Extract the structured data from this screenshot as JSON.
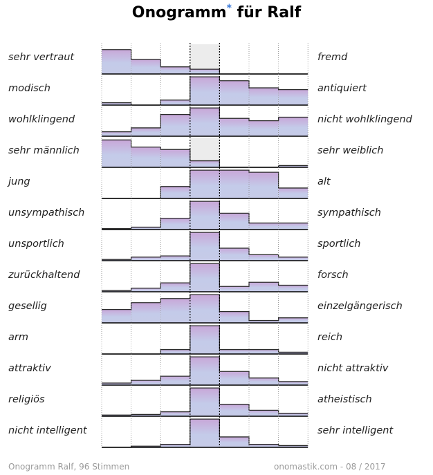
{
  "title": "Onogramm",
  "title_star": "*",
  "title_suffix": " für Ralf",
  "footer_left": "Onogramm Ralf, 96 Stimmen",
  "footer_right": "onomastik.com - 08 / 2017",
  "colors": {
    "bar_top": "#c8a7d8",
    "bar_bottom": "#c4cbe9",
    "bar_fill": "#c6cbe8",
    "grid": "#888888",
    "baseline": "#000000",
    "highlight": "#ececec"
  },
  "chart_data": {
    "type": "bar",
    "title": "Onogramm* für Ralf",
    "columns": 7,
    "ylim": [
      0,
      1
    ],
    "rows": [
      {
        "left": "sehr vertraut",
        "right": "fremd",
        "values": [
          0.82,
          0.49,
          0.24,
          0.16,
          0.0,
          0.0,
          0.0
        ],
        "center_highlight": true
      },
      {
        "left": "modisch",
        "right": "antiquiert",
        "values": [
          0.08,
          0.0,
          0.17,
          0.95,
          0.82,
          0.58,
          0.52
        ]
      },
      {
        "left": "wohlklingend",
        "right": "nicht wohlklingend",
        "values": [
          0.15,
          0.28,
          0.73,
          0.95,
          0.6,
          0.52,
          0.64
        ]
      },
      {
        "left": "sehr männlich",
        "right": "sehr weiblich",
        "values": [
          0.92,
          0.68,
          0.6,
          0.22,
          0.0,
          0.0,
          0.06
        ],
        "center_highlight": true
      },
      {
        "left": "jung",
        "right": "alt",
        "values": [
          0.0,
          0.0,
          0.4,
          0.95,
          0.95,
          0.88,
          0.35
        ]
      },
      {
        "left": "unsympathisch",
        "right": "sympathisch",
        "values": [
          0.03,
          0.08,
          0.38,
          0.95,
          0.55,
          0.22,
          0.22
        ]
      },
      {
        "left": "unsportlich",
        "right": "sportlich",
        "values": [
          0.04,
          0.12,
          0.16,
          0.95,
          0.42,
          0.2,
          0.12
        ]
      },
      {
        "left": "zurückhaltend",
        "right": "forsch",
        "values": [
          0.04,
          0.12,
          0.3,
          0.95,
          0.18,
          0.32,
          0.22
        ]
      },
      {
        "left": "gesellig",
        "right": "einzelgängerisch",
        "values": [
          0.45,
          0.68,
          0.82,
          0.95,
          0.38,
          0.08,
          0.17
        ]
      },
      {
        "left": "arm",
        "right": "reich",
        "values": [
          0.0,
          0.0,
          0.15,
          0.95,
          0.15,
          0.15,
          0.06
        ]
      },
      {
        "left": "attraktiv",
        "right": "nicht attraktiv",
        "values": [
          0.07,
          0.16,
          0.3,
          0.95,
          0.46,
          0.24,
          0.12
        ]
      },
      {
        "left": "religiös",
        "right": "atheistisch",
        "values": [
          0.04,
          0.06,
          0.15,
          0.95,
          0.4,
          0.2,
          0.1
        ]
      },
      {
        "left": "nicht intelligent",
        "right": "sehr intelligent",
        "values": [
          0.0,
          0.04,
          0.1,
          0.95,
          0.35,
          0.1,
          0.06
        ]
      }
    ]
  }
}
